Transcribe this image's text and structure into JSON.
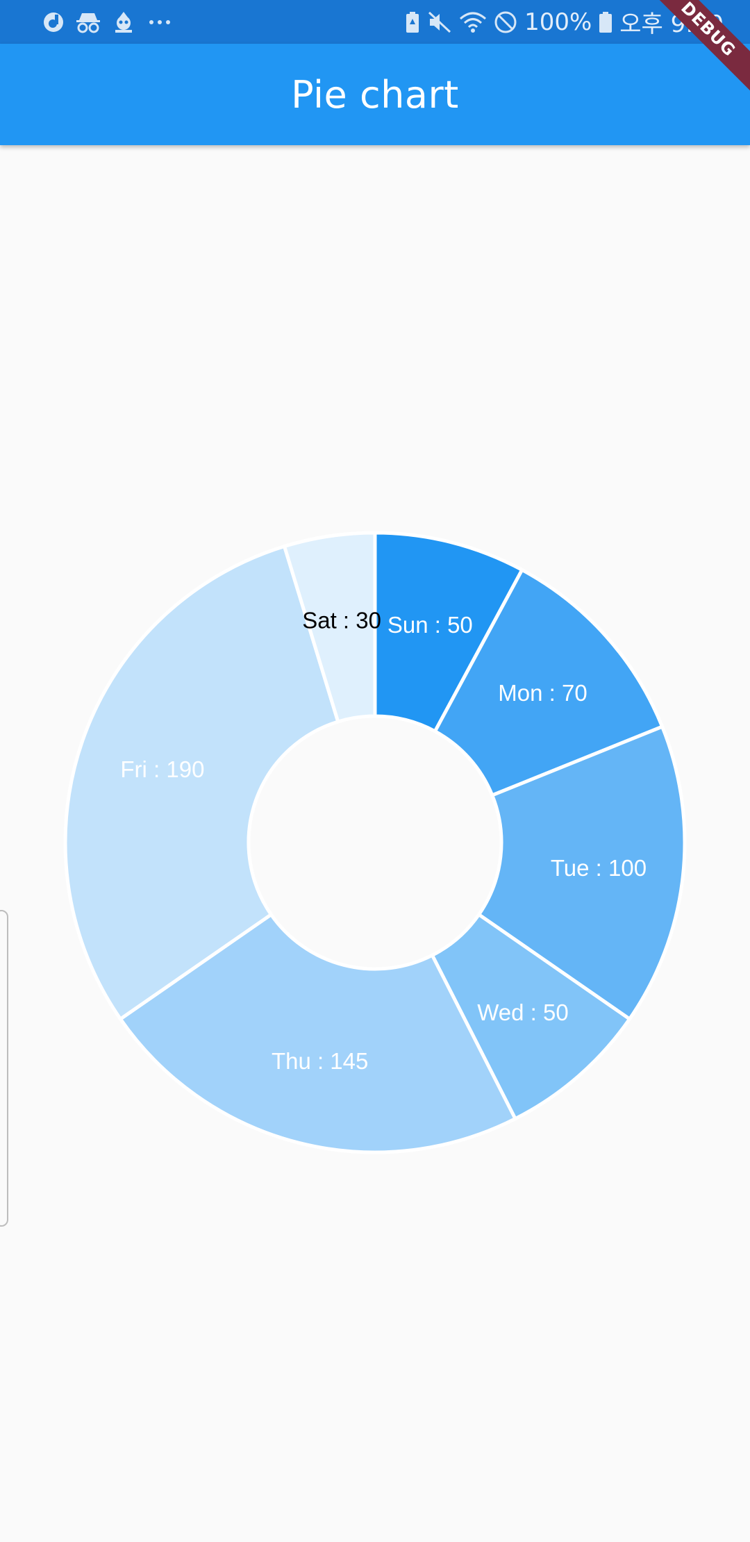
{
  "status_bar": {
    "battery_text": "100%",
    "time_text": "오후 9:30",
    "left_icons": [
      "app-notification-icon",
      "incognito-icon",
      "robot-icon",
      "more-dots-icon"
    ],
    "right_icons": [
      "battery-saver-icon",
      "mute-icon",
      "wifi-icon",
      "do-not-disturb-icon",
      "battery-icon"
    ]
  },
  "app_bar": {
    "title": "Pie chart",
    "color": "#2196f3"
  },
  "debug_banner": {
    "text": "DEBUG",
    "color": "#7a2a3f"
  },
  "chart_data": {
    "type": "pie",
    "donut": true,
    "categories": [
      "Sun",
      "Mon",
      "Tue",
      "Wed",
      "Thu",
      "Fri",
      "Sat"
    ],
    "values": [
      50,
      70,
      100,
      50,
      145,
      190,
      30
    ],
    "labels": [
      "Sun : 50",
      "Mon : 70",
      "Tue : 100",
      "Wed : 50",
      "Thu : 145",
      "Fri : 190",
      "Sat : 30"
    ],
    "colors": [
      "#2196f3",
      "#42a5f5",
      "#64b5f6",
      "#81c4f8",
      "#a1d2fa",
      "#c2e2fb",
      "#dff0fd"
    ],
    "label_colors": [
      "#ffffff",
      "#ffffff",
      "#ffffff",
      "#ffffff",
      "#ffffff",
      "#ffffff",
      "#000000"
    ]
  }
}
